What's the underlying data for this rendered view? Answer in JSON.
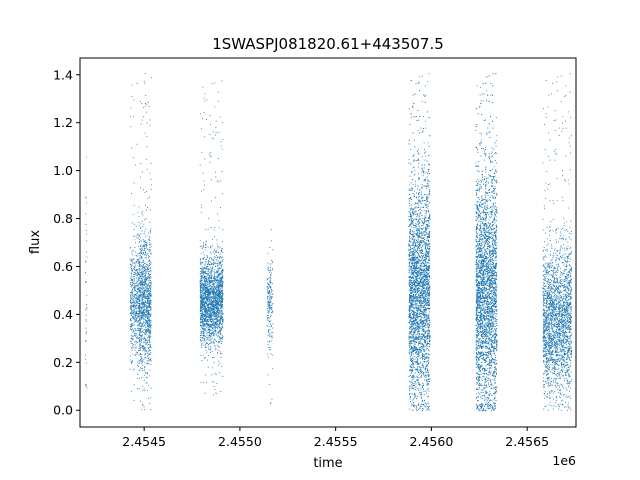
{
  "chart_data": {
    "type": "scatter",
    "title": "1SWASPJ081820.61+443507.5",
    "xlabel": "time",
    "ylabel": "flux",
    "x_offset_label": "1e6",
    "xlim": [
      2454165,
      2456755
    ],
    "ylim": [
      -0.07,
      1.47
    ],
    "xticks": [
      2454500,
      2455000,
      2455500,
      2456000,
      2456500
    ],
    "xtick_labels": [
      "2.4545",
      "2.4550",
      "2.4555",
      "2.4560",
      "2.4565"
    ],
    "yticks": [
      0.0,
      0.2,
      0.4,
      0.6,
      0.8,
      1.0,
      1.2,
      1.4
    ],
    "ytick_labels": [
      "0.0",
      "0.2",
      "0.4",
      "0.6",
      "0.8",
      "1.0",
      "1.2",
      "1.4"
    ],
    "grid": false,
    "marker_color": "#1f77b4",
    "clusters": [
      {
        "start": 2454190,
        "end": 2454200,
        "center": 0.45,
        "spread": 0.3,
        "min": 0.08,
        "max": 1.13,
        "count": 40
      },
      {
        "start": 2454425,
        "end": 2454470,
        "center": 0.45,
        "spread": 0.12,
        "min": 0.03,
        "max": 1.4,
        "count": 500
      },
      {
        "start": 2454470,
        "end": 2454535,
        "center": 0.45,
        "spread": 0.14,
        "min": 0.0,
        "max": 1.41,
        "count": 1200
      },
      {
        "start": 2454790,
        "end": 2454910,
        "center": 0.46,
        "spread": 0.09,
        "min": 0.05,
        "max": 1.38,
        "count": 2200
      },
      {
        "start": 2455140,
        "end": 2455170,
        "center": 0.44,
        "spread": 0.1,
        "min": 0.02,
        "max": 0.78,
        "count": 200
      },
      {
        "start": 2455880,
        "end": 2455990,
        "center": 0.5,
        "spread": 0.22,
        "min": 0.0,
        "max": 1.41,
        "count": 4000
      },
      {
        "start": 2456230,
        "end": 2456340,
        "center": 0.5,
        "spread": 0.24,
        "min": 0.0,
        "max": 1.41,
        "count": 4200
      },
      {
        "start": 2456580,
        "end": 2456730,
        "center": 0.38,
        "spread": 0.15,
        "min": 0.0,
        "max": 1.41,
        "count": 2400
      }
    ]
  }
}
